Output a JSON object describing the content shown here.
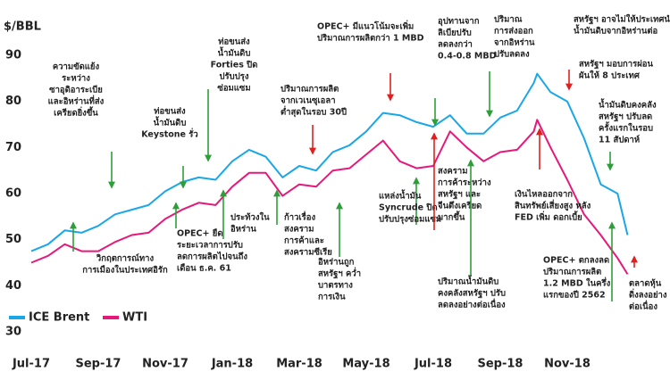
{
  "chart_data": {
    "type": "line",
    "y_label": "$/BBL",
    "x": [
      0,
      0.5,
      1,
      1.5,
      2,
      2.5,
      3,
      3.5,
      4,
      4.5,
      5,
      5.5,
      6,
      6.5,
      7,
      7.5,
      8,
      8.5,
      9,
      9.5,
      10,
      10.5,
      11,
      11.5,
      12,
      12.5,
      13,
      13.5,
      14,
      14.5,
      15,
      15.1,
      15.5,
      16,
      16.5,
      17,
      17.5,
      17.8
    ],
    "xlim": [
      -0.2,
      18.2
    ],
    "xticks": [
      {
        "value": 0,
        "label": "Jul-17"
      },
      {
        "value": 2,
        "label": "Sep-17"
      },
      {
        "value": 4,
        "label": "Nov-17"
      },
      {
        "value": 6,
        "label": "Jan-18"
      },
      {
        "value": 8,
        "label": "Mar-18"
      },
      {
        "value": 10,
        "label": "May-18"
      },
      {
        "value": 12,
        "label": "Jul-18"
      },
      {
        "value": 14,
        "label": "Sep-18"
      },
      {
        "value": 16,
        "label": "Nov-18"
      }
    ],
    "ylim": [
      30,
      90
    ],
    "yticks": [
      30,
      40,
      50,
      60,
      70,
      80,
      90
    ],
    "grid": false,
    "series": [
      {
        "name": "ICE Brent",
        "color": "#1aa7e8",
        "values": [
          47.5,
          49,
          52,
          51.5,
          53,
          55.5,
          56.5,
          57.5,
          60.5,
          62.5,
          63.5,
          63,
          67,
          69.5,
          68,
          63.5,
          66,
          65,
          69,
          70.5,
          73.5,
          77.5,
          77,
          75.5,
          74.5,
          77,
          73,
          73,
          76.5,
          78,
          84,
          86,
          82,
          80,
          72,
          62,
          60,
          51
        ]
      },
      {
        "name": "WTI",
        "color": "#e6197a",
        "values": [
          45,
          46.5,
          49,
          47.5,
          47.5,
          49.5,
          51,
          51.5,
          54.5,
          56.5,
          58,
          57.5,
          61.5,
          64.5,
          64.5,
          59.5,
          62,
          61.5,
          65,
          65.5,
          68.5,
          71.5,
          67,
          65.5,
          66,
          73.5,
          70,
          67,
          69,
          69.5,
          73.5,
          76,
          70,
          63,
          55.5,
          51,
          46,
          42.5
        ]
      }
    ],
    "annotations": [
      {
        "lines": [
          "ความขัดแย้ง",
          "ระหว่าง",
          "ซาอุดิอาระเบีย",
          "และอิหร่านที่ส่ง",
          "เครียดยิ่งขึ้น"
        ]
      },
      {
        "lines": [
          "วิกฤตการณ์ทาง",
          "การเมืองในประเทศอิรัก"
        ]
      },
      {
        "lines": [
          "ท่อขนส่ง",
          "น้ำมันดิบ",
          "Keystone รั่ว"
        ]
      },
      {
        "lines": [
          "ท่อขนส่ง",
          "น้ำมันดิบ",
          "Forties ปิด",
          "ปรับปรุง",
          "ซ่อมแซม"
        ]
      },
      {
        "lines": [
          "OPEC+ ยืด",
          "ระยะเวลาการปรับ",
          "ลดการผลิตไปจนถึง",
          "เดือน ธ.ค. 61"
        ]
      },
      {
        "lines": [
          "ประท้วงใน",
          "อิหร่าน"
        ]
      },
      {
        "lines": [
          "ปริมาณการผลิต",
          "จากเวเนซุเอลา",
          "ต่ำสุดในรอบ 30ปี"
        ]
      },
      {
        "lines": [
          "ก้าวเรื่อง",
          "สงคราม",
          "การค้าและ",
          "สงครามซีเรีย"
        ]
      },
      {
        "lines": [
          "OPEC+ มีแนวโน้มจะเพิ่ม",
          "ปริมาณการผลิตกว่า 1 MBD"
        ]
      },
      {
        "lines": [
          "อิหร่านถูก",
          "สหรัฐฯ คว่ำ",
          "บาตรทาง",
          "การเงิน"
        ]
      },
      {
        "lines": [
          "แหล่งน้ำมัน",
          "Syncrude ปิด",
          "ปรับปรุงซ่อมแซม"
        ]
      },
      {
        "lines": [
          "อุปทานจาก",
          "ลิเบียปรับ",
          "ลดลงกว่า",
          "0.4-0.8 MBD"
        ]
      },
      {
        "lines": [
          "สงคราม",
          "การค้าระหว่าง",
          "สหรัฐฯ และ",
          "จีนตึงเครียด",
          "มากขึ้น"
        ]
      },
      {
        "lines": [
          "ปริมาณ",
          "การส่งออก",
          "จากอิหร่าน",
          "ปรับลดลง"
        ]
      },
      {
        "lines": [
          "ปริมาณน้ำมันดิบ",
          "คงคลังสหรัฐฯ ปรับ",
          "ลดลงอย่างต่อเนื่อง"
        ]
      },
      {
        "lines": [
          "สหรัฐฯ อาจไม่ให้ประเทศนำเข้า",
          "น้ำมันดิบจากอิหร่านต่อ"
        ]
      },
      {
        "lines": [
          "สหรัฐฯ มอบการผ่อน",
          "ผันให้ 8 ประเทศ"
        ]
      },
      {
        "lines": [
          "น้ำมันดิบคงคลัง",
          "สหรัฐฯ ปรับลด",
          "ครั้งแรกในรอบ",
          "11 สัปดาห์"
        ]
      },
      {
        "lines": [
          "เงินไหลออกจาก",
          "สินทรัพย์เสี่ยงสูง หลัง",
          "FED เพิ่ม ดอกเบี้ย"
        ]
      },
      {
        "lines": [
          "OPEC+ ตกลงลด",
          "ปริมาณการผลิต",
          "1.2 MBD ในครึ่ง",
          "แรกของปี 2562"
        ]
      },
      {
        "lines": [
          "ตลาดหุ้น",
          "ดิ่งลงอย่าง",
          "ต่อเนื่อง"
        ]
      }
    ]
  }
}
